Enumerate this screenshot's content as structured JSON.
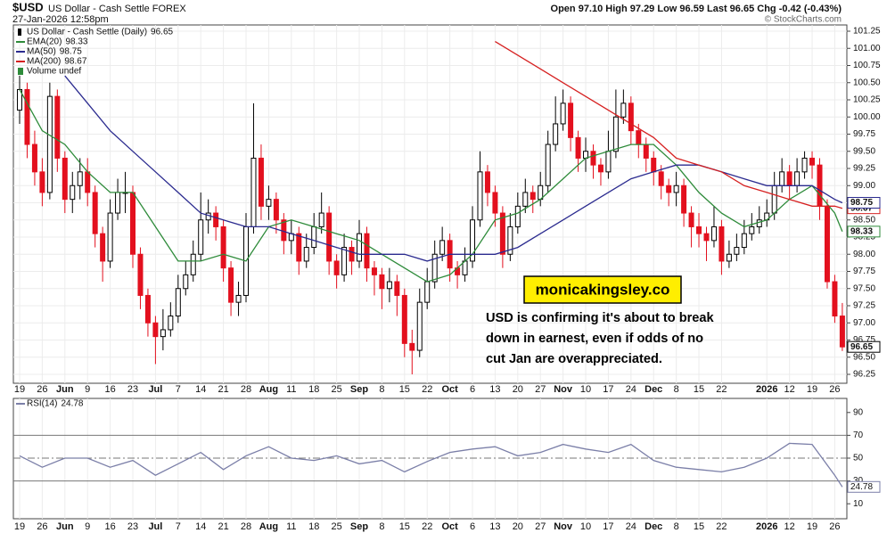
{
  "chart_data": [
    {
      "type": "candlestick",
      "title": "$USD",
      "subtitle": "US Dollar - Cash Settle FOREX",
      "date": "27-Jan-2026 12:58pm",
      "quote": "Open 97.10  High 97.29  Low 96.59  Last 96.65  Chg -0.42 (-0.43%)",
      "source": "© StockCharts.com",
      "name": "US Dollar - Cash Settle (Daily)",
      "up_color": "#000000",
      "down_color": "#e3101e",
      "categories": [
        "19",
        null,
        null,
        "26",
        null,
        null,
        "Jun",
        null,
        null,
        "9",
        null,
        null,
        "16",
        null,
        null,
        "23",
        null,
        null,
        "Jul",
        null,
        null,
        "7",
        null,
        null,
        "14",
        null,
        null,
        "21",
        null,
        null,
        "28",
        null,
        null,
        "Aug",
        null,
        null,
        "11",
        null,
        null,
        "18",
        null,
        null,
        "25",
        null,
        null,
        "Sep",
        null,
        null,
        "8",
        null,
        null,
        "15",
        null,
        null,
        "22",
        null,
        null,
        "Oct",
        null,
        null,
        "6",
        null,
        null,
        "13",
        null,
        null,
        "20",
        null,
        null,
        "27",
        null,
        null,
        "Nov",
        null,
        null,
        "10",
        null,
        null,
        "17",
        null,
        null,
        "24",
        null,
        null,
        "Dec",
        null,
        null,
        "8",
        null,
        null,
        "15",
        null,
        null,
        "22",
        null,
        null,
        null,
        null,
        null,
        "2026",
        null,
        null,
        "12",
        null,
        null,
        "19",
        null,
        null,
        "26",
        null
      ],
      "open": [
        100.1,
        100.4,
        99.6,
        99.2,
        98.9,
        100.3,
        99.4,
        98.8,
        99.0,
        99.2,
        98.9,
        98.3,
        97.9,
        98.6,
        98.9,
        98.9,
        98.0,
        97.4,
        97.0,
        96.8,
        96.9,
        97.1,
        97.5,
        97.7,
        98.0,
        98.5,
        98.6,
        98.4,
        97.8,
        97.3,
        97.4,
        98.4,
        99.4,
        98.7,
        98.8,
        98.5,
        98.2,
        98.3,
        97.9,
        98.1,
        98.4,
        98.6,
        97.9,
        97.7,
        98.1,
        97.9,
        98.3,
        97.8,
        97.7,
        97.5,
        97.6,
        97.4,
        96.7,
        96.6,
        97.3,
        97.6,
        98.0,
        98.2,
        97.8,
        97.7,
        97.9,
        98.5,
        99.2,
        98.9,
        98.6,
        98.0,
        98.4,
        98.7,
        98.9,
        98.8,
        99.0,
        99.6,
        99.9,
        100.2,
        99.7,
        99.4,
        99.5,
        99.3,
        99.2,
        99.5,
        100.0,
        100.2,
        99.8,
        99.6,
        99.4,
        99.2,
        99.0,
        98.9,
        99.0,
        98.6,
        98.4,
        98.3,
        98.2,
        98.4,
        97.9,
        98.0,
        98.1,
        98.3,
        98.4,
        98.5,
        98.6,
        99.0,
        99.2,
        99.0,
        99.2,
        99.4,
        99.3,
        98.7,
        97.6,
        97.1
      ],
      "high": [
        100.6,
        100.5,
        99.8,
        99.4,
        100.5,
        100.4,
        99.5,
        99.2,
        99.4,
        99.4,
        99.0,
        98.4,
        98.8,
        99.1,
        99.2,
        99.0,
        98.1,
        97.5,
        97.1,
        97.2,
        97.3,
        97.7,
        97.9,
        98.2,
        98.9,
        98.8,
        98.7,
        98.5,
        97.9,
        97.6,
        98.6,
        100.2,
        99.6,
        99.0,
        98.9,
        98.6,
        98.5,
        98.4,
        98.3,
        98.6,
        98.9,
        98.7,
        98.0,
        98.3,
        98.2,
        98.5,
        98.4,
        97.9,
        97.8,
        97.8,
        97.7,
        97.5,
        96.9,
        97.5,
        97.8,
        98.2,
        98.4,
        98.3,
        97.9,
        98.1,
        98.7,
        99.5,
        99.3,
        99.0,
        98.7,
        98.6,
        98.9,
        99.1,
        99.0,
        99.2,
        99.8,
        100.3,
        100.4,
        100.3,
        99.8,
        99.7,
        99.6,
        99.4,
        99.8,
        100.4,
        100.4,
        100.3,
        99.9,
        99.7,
        99.5,
        99.3,
        99.1,
        99.2,
        99.1,
        98.7,
        98.6,
        98.4,
        98.7,
        98.5,
        98.2,
        98.3,
        98.5,
        98.6,
        98.7,
        98.8,
        99.2,
        99.4,
        99.3,
        99.4,
        99.5,
        99.5,
        99.4,
        98.8,
        97.7,
        97.29
      ],
      "low": [
        99.9,
        99.4,
        99.0,
        98.7,
        98.8,
        99.2,
        98.6,
        98.6,
        98.8,
        98.7,
        98.1,
        97.6,
        97.8,
        98.5,
        98.6,
        97.8,
        97.2,
        96.8,
        96.4,
        96.6,
        96.8,
        97.0,
        97.4,
        97.6,
        97.9,
        98.3,
        98.2,
        97.6,
        97.1,
        97.1,
        97.3,
        98.3,
        98.5,
        98.5,
        98.3,
        98.0,
        98.0,
        97.7,
        97.8,
        98.0,
        98.3,
        97.7,
        97.5,
        97.6,
        97.7,
        97.8,
        97.6,
        97.4,
        97.2,
        97.3,
        97.1,
        96.5,
        96.25,
        96.5,
        97.2,
        97.5,
        97.9,
        97.6,
        97.5,
        97.6,
        97.8,
        98.4,
        98.7,
        98.4,
        97.8,
        97.9,
        98.3,
        98.6,
        98.6,
        98.7,
        98.9,
        99.5,
        99.8,
        99.5,
        99.2,
        99.2,
        99.1,
        99.0,
        99.1,
        99.4,
        99.9,
        99.6,
        99.4,
        99.2,
        99.0,
        98.8,
        98.7,
        98.7,
        98.4,
        98.1,
        98.1,
        97.9,
        98.1,
        97.7,
        97.8,
        97.9,
        98.0,
        98.2,
        98.3,
        98.4,
        98.5,
        98.9,
        98.8,
        98.9,
        99.1,
        99.1,
        98.5,
        97.5,
        97.0,
        96.59
      ],
      "close": [
        100.4,
        99.6,
        99.2,
        98.9,
        100.3,
        99.4,
        98.8,
        99.0,
        99.2,
        98.9,
        98.3,
        97.9,
        98.6,
        98.9,
        98.9,
        98.0,
        97.4,
        97.0,
        96.8,
        96.9,
        97.1,
        97.5,
        97.7,
        98.0,
        98.5,
        98.6,
        98.4,
        97.8,
        97.3,
        97.4,
        98.4,
        99.4,
        98.7,
        98.8,
        98.5,
        98.2,
        98.3,
        97.9,
        98.1,
        98.4,
        98.6,
        97.9,
        97.7,
        98.1,
        97.9,
        98.3,
        97.8,
        97.7,
        97.5,
        97.6,
        97.4,
        96.7,
        96.6,
        97.3,
        97.6,
        98.0,
        98.2,
        97.8,
        97.7,
        97.9,
        98.5,
        99.2,
        98.9,
        98.6,
        98.0,
        98.4,
        98.7,
        98.9,
        98.8,
        99.0,
        99.6,
        99.9,
        100.2,
        99.7,
        99.4,
        99.5,
        99.3,
        99.2,
        99.5,
        100.0,
        100.2,
        99.8,
        99.6,
        99.4,
        99.2,
        99.0,
        98.9,
        99.0,
        98.6,
        98.4,
        98.3,
        98.2,
        98.4,
        97.9,
        98.0,
        98.1,
        98.3,
        98.4,
        98.5,
        98.6,
        99.0,
        99.2,
        99.0,
        99.2,
        99.4,
        99.3,
        98.7,
        97.6,
        97.1,
        96.65
      ],
      "overlays": [
        {
          "name": "EMA(20)",
          "color": "#2e8b3a",
          "x": [
            0,
            3,
            6,
            9,
            12,
            15,
            18,
            21,
            24,
            27,
            30,
            33,
            36,
            39,
            42,
            45,
            48,
            51,
            54,
            57,
            60,
            63,
            66,
            69,
            72,
            75,
            78,
            81,
            84,
            87,
            90,
            93,
            96,
            99,
            102,
            105,
            108,
            109
          ],
          "values": [
            100.4,
            99.8,
            99.6,
            99.2,
            98.9,
            98.9,
            98.4,
            97.9,
            97.9,
            98.0,
            97.9,
            98.4,
            98.5,
            98.4,
            98.3,
            98.2,
            98.0,
            97.8,
            97.6,
            97.7,
            98.0,
            98.5,
            98.6,
            98.8,
            99.1,
            99.4,
            99.5,
            99.6,
            99.6,
            99.3,
            98.9,
            98.6,
            98.4,
            98.5,
            98.8,
            99.0,
            98.6,
            98.33
          ]
        },
        {
          "name": "MA(50)",
          "color": "#2b2b8f",
          "x": [
            0,
            3,
            6,
            9,
            12,
            15,
            18,
            21,
            24,
            27,
            30,
            33,
            36,
            39,
            42,
            45,
            48,
            51,
            54,
            57,
            60,
            63,
            66,
            69,
            72,
            75,
            78,
            81,
            84,
            87,
            90,
            93,
            96,
            99,
            102,
            105,
            108,
            109
          ],
          "values": [
            null,
            null,
            100.6,
            100.2,
            99.8,
            99.5,
            99.2,
            98.9,
            98.6,
            98.5,
            98.4,
            98.4,
            98.3,
            98.2,
            98.1,
            98.0,
            98.0,
            98.0,
            97.9,
            98.0,
            98.0,
            98.0,
            98.1,
            98.3,
            98.5,
            98.7,
            98.9,
            99.1,
            99.2,
            99.3,
            99.3,
            99.2,
            99.1,
            99.0,
            99.0,
            99.0,
            98.8,
            98.75
          ]
        },
        {
          "name": "MA(200)",
          "color": "#d62020",
          "x": [
            0,
            3,
            6,
            9,
            12,
            15,
            18,
            21,
            24,
            27,
            30,
            33,
            36,
            39,
            42,
            45,
            48,
            51,
            54,
            57,
            60,
            63,
            66,
            69,
            72,
            75,
            78,
            81,
            84,
            87,
            90,
            93,
            96,
            99,
            102,
            105,
            108,
            109
          ],
          "values": [
            null,
            null,
            null,
            null,
            null,
            null,
            null,
            null,
            null,
            null,
            null,
            null,
            null,
            null,
            null,
            null,
            null,
            null,
            null,
            null,
            null,
            101.1,
            100.9,
            100.7,
            100.5,
            100.3,
            100.1,
            99.9,
            99.7,
            99.4,
            99.3,
            99.2,
            99.0,
            98.9,
            98.8,
            98.7,
            98.7,
            98.67
          ]
        }
      ],
      "volume_legend": "Volume undef",
      "ylim": [
        96.25,
        101.25
      ],
      "yticks": [
        96.25,
        {
          "value": 96.5,
          "label": "96.50"
        },
        96.75,
        {
          "value": 97,
          "label": "97.00"
        },
        97.25,
        {
          "value": 97.5,
          "label": "97.50"
        },
        97.75,
        {
          "value": 98,
          "label": "98.00"
        },
        98.25,
        {
          "value": 98.5,
          "label": "98.50"
        },
        98.75,
        {
          "value": 99,
          "label": "99.00"
        },
        99.25,
        {
          "value": 99.5,
          "label": "99.50"
        },
        99.75,
        {
          "value": 100,
          "label": "100.00"
        },
        100.25,
        {
          "value": 100.5,
          "label": "100.50"
        },
        100.75,
        {
          "value": 101,
          "label": "101.00"
        },
        101.25
      ],
      "grid": true,
      "annotations": {
        "box": "monicakingsley.co",
        "text": [
          "USD is confirming it's about to break",
          "down in earnest, even if odds of no",
          "cut Jan are overappreciated."
        ]
      }
    },
    {
      "type": "line",
      "series": [
        {
          "name": "RSI(14)",
          "color": "#7b7fa8",
          "x": [
            0,
            3,
            6,
            9,
            12,
            15,
            18,
            21,
            24,
            27,
            30,
            33,
            36,
            39,
            42,
            45,
            48,
            51,
            54,
            57,
            60,
            63,
            66,
            69,
            72,
            75,
            78,
            81,
            84,
            87,
            90,
            93,
            96,
            99,
            102,
            105,
            108,
            109
          ],
          "values": [
            52,
            42,
            50,
            50,
            42,
            48,
            35,
            45,
            55,
            40,
            52,
            60,
            50,
            48,
            52,
            45,
            48,
            38,
            47,
            55,
            58,
            60,
            52,
            55,
            62,
            58,
            55,
            62,
            48,
            42,
            40,
            38,
            42,
            50,
            63,
            62,
            35,
            24.78
          ]
        }
      ],
      "ylim": [
        0,
        100
      ],
      "yticks": [
        10,
        30,
        50,
        70,
        90
      ],
      "reference_lines": [
        30,
        50,
        70
      ]
    }
  ]
}
